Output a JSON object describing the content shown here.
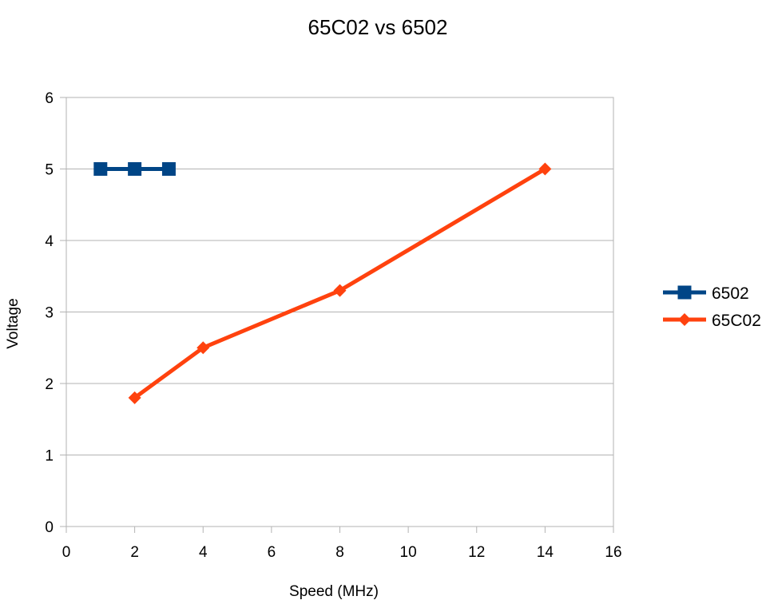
{
  "chart_data": {
    "type": "line",
    "title": "65C02 vs 6502",
    "xlabel": "Speed (MHz)",
    "ylabel": "Voltage",
    "xlim": [
      0,
      16
    ],
    "ylim": [
      0,
      6
    ],
    "x_ticks": [
      "0",
      "2",
      "4",
      "6",
      "8",
      "10",
      "12",
      "14",
      "16"
    ],
    "y_ticks": [
      "0",
      "1",
      "2",
      "3",
      "4",
      "5",
      "6"
    ],
    "grid": "horizontal",
    "legend_position": "right",
    "series": [
      {
        "name": "6502",
        "color": "#004586",
        "marker": "square",
        "x": [
          1,
          2,
          3
        ],
        "y": [
          5,
          5,
          5
        ]
      },
      {
        "name": "65C02",
        "color": "#ff420e",
        "marker": "diamond",
        "x": [
          2,
          4,
          8,
          14
        ],
        "y": [
          1.8,
          2.5,
          3.3,
          5
        ]
      }
    ]
  }
}
